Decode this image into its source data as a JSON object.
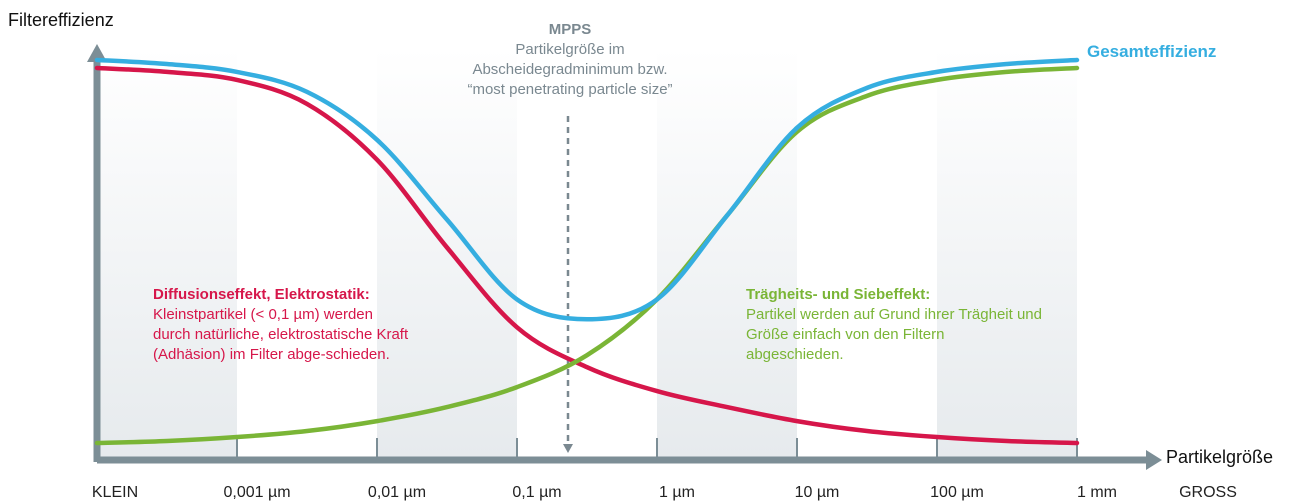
{
  "chart_data": {
    "type": "line",
    "title": "",
    "ylabel": "Filtereffizienz",
    "xlabel": "Partikelgröße",
    "x_ticks": [
      "KLEIN",
      "0,001 µm",
      "0,01 µm",
      "0,1 µm",
      "1 µm",
      "10 µm",
      "100 µm",
      "1 mm",
      "GROSS"
    ],
    "x_scale": "log",
    "grid": false,
    "x": [
      0,
      0.5,
      1,
      1.5,
      2,
      2.5,
      3,
      3.5,
      4,
      4.5,
      5,
      5.5,
      6,
      6.5,
      7
    ],
    "series": [
      {
        "name": "Gesamteffizienz",
        "color": "#35aee0",
        "values": [
          0.97,
          0.96,
          0.94,
          0.89,
          0.77,
          0.57,
          0.37,
          0.32,
          0.37,
          0.58,
          0.8,
          0.9,
          0.94,
          0.96,
          0.97
        ]
      },
      {
        "name": "",
        "color": "#d6164a",
        "values": [
          0.95,
          0.94,
          0.92,
          0.86,
          0.72,
          0.5,
          0.3,
          0.2,
          0.14,
          0.1,
          0.065,
          0.04,
          0.025,
          0.015,
          0.01
        ]
      },
      {
        "name": "",
        "color": "#7ab536",
        "values": [
          0.01,
          0.015,
          0.025,
          0.04,
          0.065,
          0.1,
          0.15,
          0.23,
          0.37,
          0.58,
          0.79,
          0.88,
          0.92,
          0.94,
          0.95
        ]
      }
    ],
    "colors": {
      "axis": "#7c8e96",
      "band": "#e8ecef",
      "mpps": "#7a8890"
    }
  },
  "labels": {
    "ylabel": "Filtereffizienz",
    "xlabel": "Partikelgröße",
    "gesamt": "Gesamteffizienz",
    "mpps_title": "MPPS",
    "mpps_lines": [
      "Partikelgröße im",
      "Abscheidegradminimum bzw.",
      "“most penetrating particle size”"
    ],
    "diff_title": "Diffusionseffekt, Elektrostatik:",
    "diff_text": "Kleinstpartikel (< 0,1 µm) werden durch natürliche, elektrostatische Kraft (Adhäsion) im Filter abge-schieden.",
    "trag_title": "Trägheits- und Siebeffekt:",
    "trag_text": "Partikel werden auf Grund ihrer Trägheit und Größe einfach von den Filtern abgeschieden."
  }
}
